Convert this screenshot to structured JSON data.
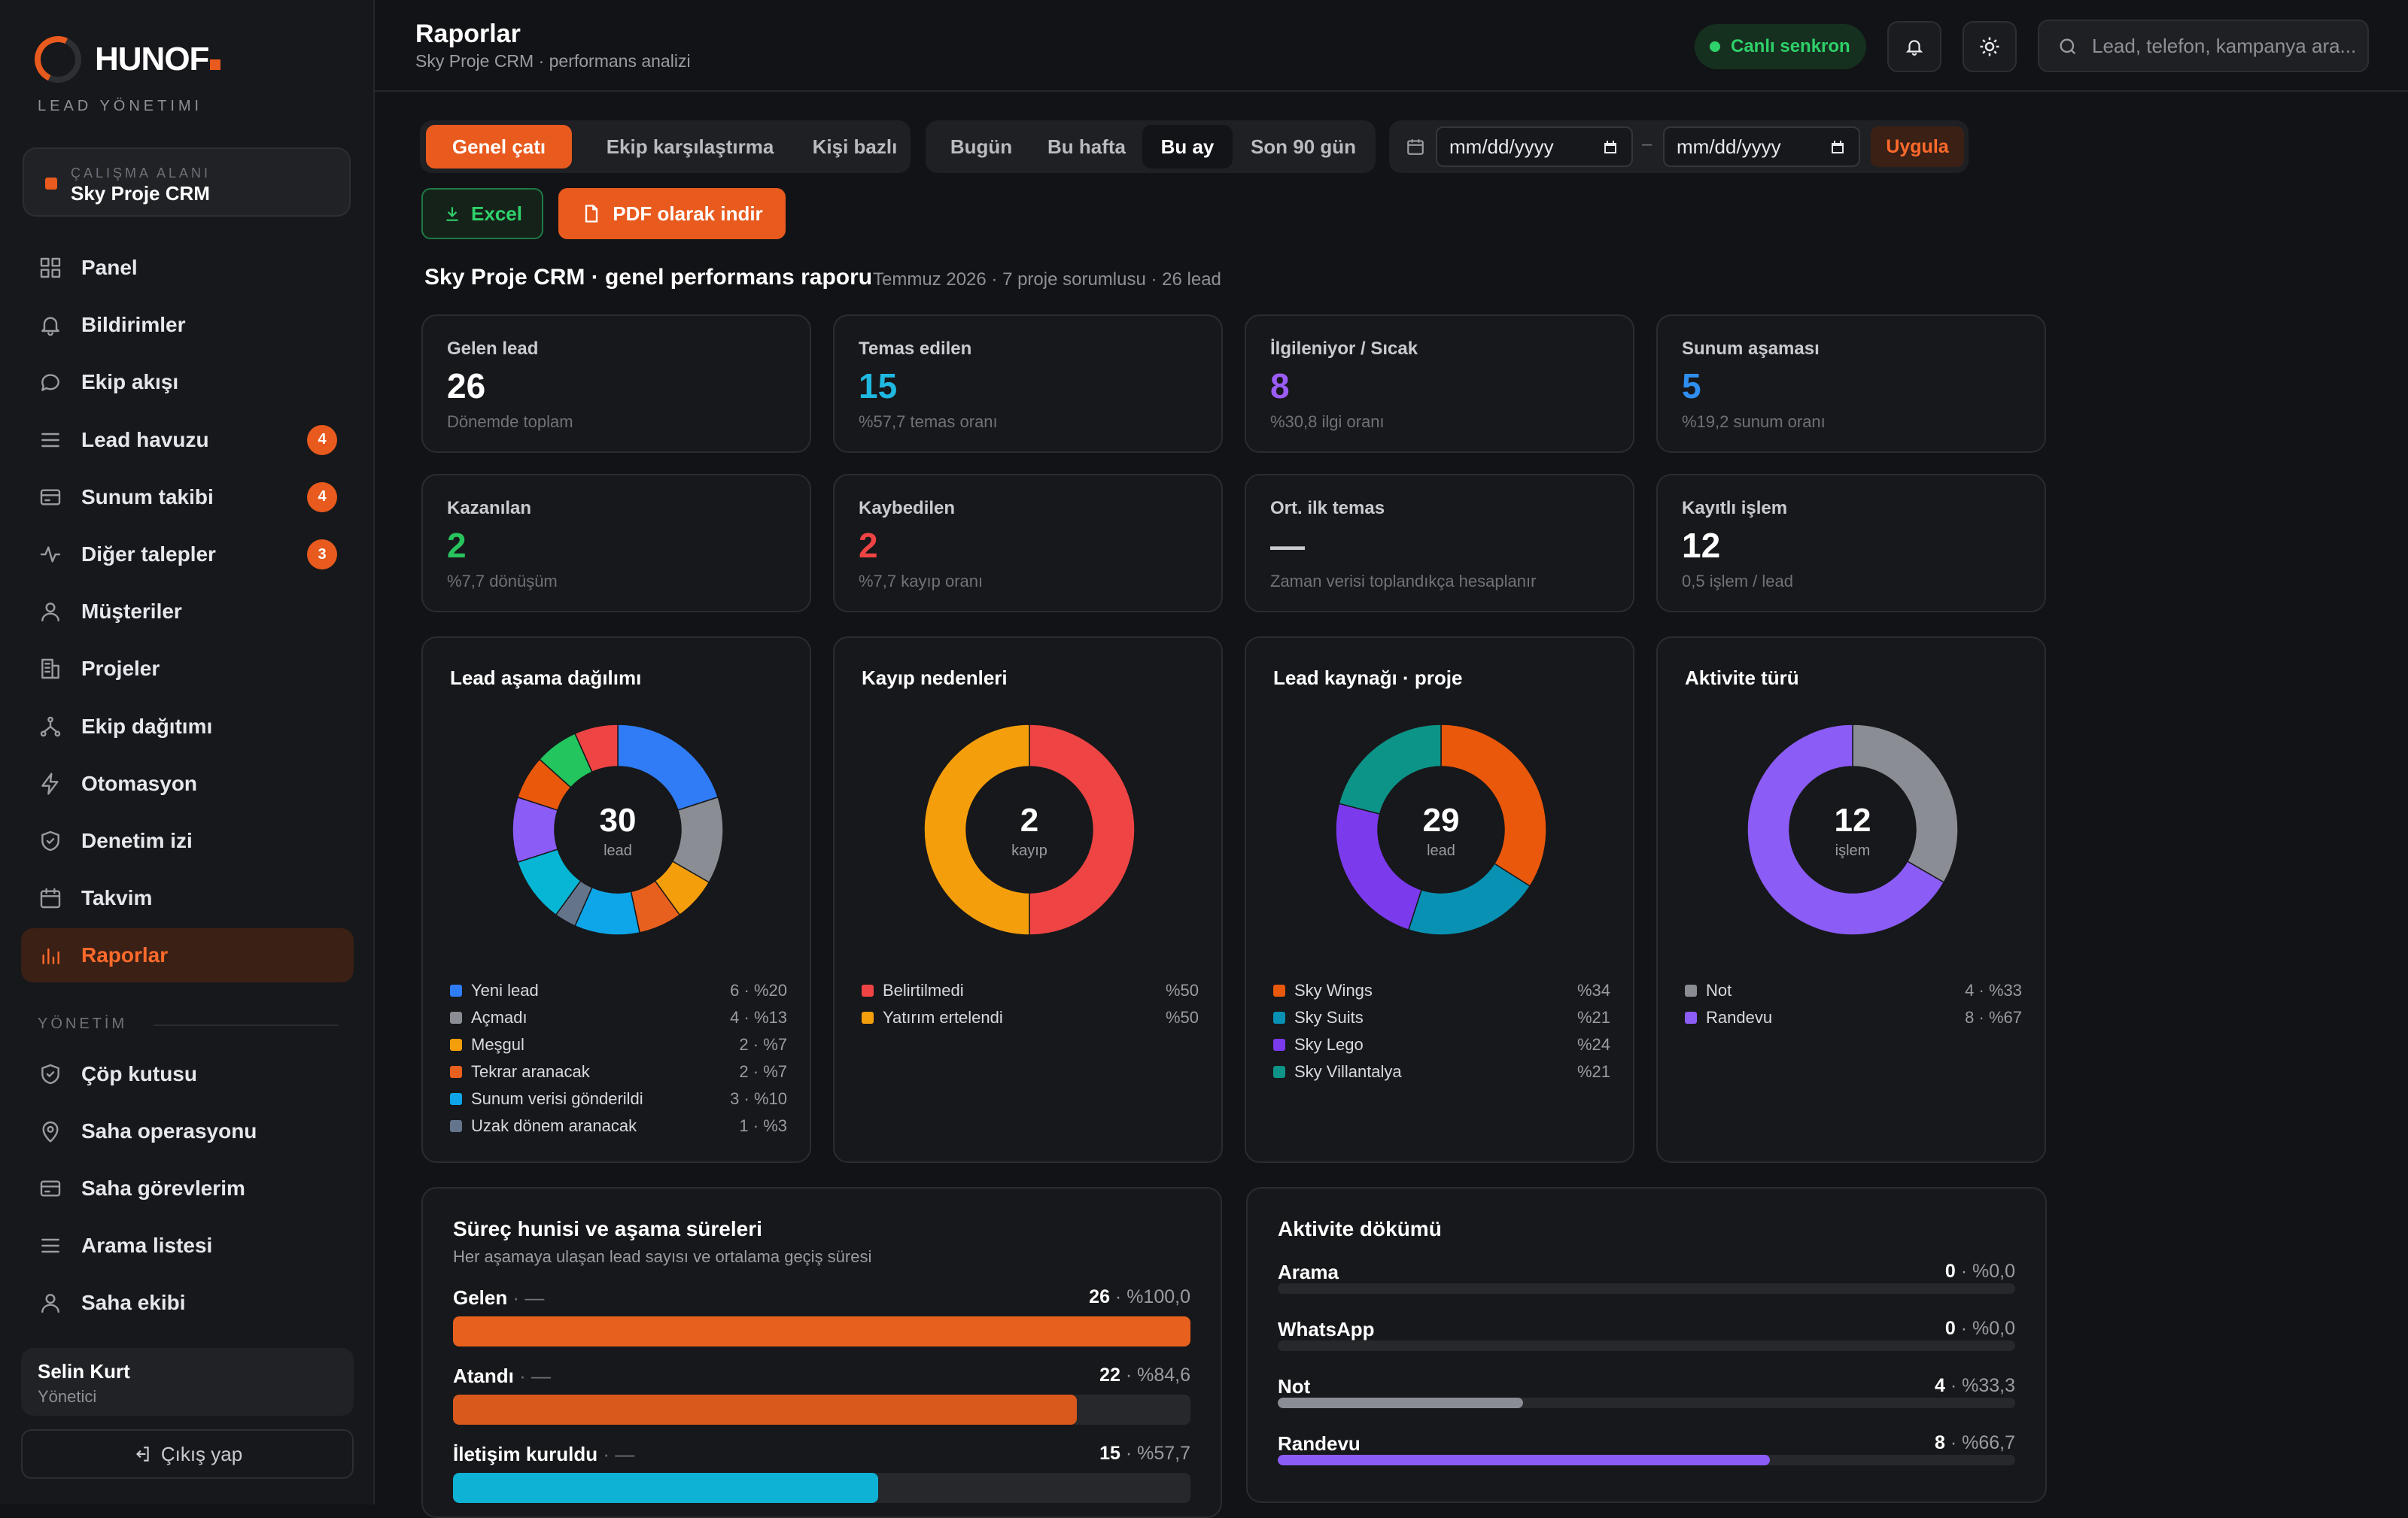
{
  "brand": {
    "name": "HUNOF",
    "subtitle": "LEAD YÖNETIMI"
  },
  "workspace": {
    "label": "ÇALIŞMA ALANI",
    "name": "Sky Proje CRM"
  },
  "nav": [
    {
      "label": "Panel",
      "icon": "grid-icon"
    },
    {
      "label": "Bildirimler",
      "icon": "bell-icon"
    },
    {
      "label": "Ekip akışı",
      "icon": "chat-icon"
    },
    {
      "label": "Lead havuzu",
      "icon": "list-icon",
      "badge": "4"
    },
    {
      "label": "Sunum takibi",
      "icon": "card-icon",
      "badge": "4"
    },
    {
      "label": "Diğer talepler",
      "icon": "activity-icon",
      "badge": "3"
    },
    {
      "label": "Müşteriler",
      "icon": "user-icon"
    },
    {
      "label": "Projeler",
      "icon": "building-icon"
    },
    {
      "label": "Ekip dağıtımı",
      "icon": "share-icon"
    },
    {
      "label": "Otomasyon",
      "icon": "bolt-icon"
    },
    {
      "label": "Denetim izi",
      "icon": "shield-icon"
    },
    {
      "label": "Takvim",
      "icon": "calendar-icon"
    },
    {
      "label": "Raporlar",
      "icon": "chart-icon",
      "active": true
    }
  ],
  "admin_section": "YÖNETİM",
  "admin_nav": [
    {
      "label": "Çöp kutusu",
      "icon": "shield-icon"
    },
    {
      "label": "Saha operasyonu",
      "icon": "pin-icon"
    },
    {
      "label": "Saha görevlerim",
      "icon": "card-icon"
    },
    {
      "label": "Arama listesi",
      "icon": "list-icon"
    },
    {
      "label": "Saha ekibi",
      "icon": "user-icon"
    }
  ],
  "user": {
    "name": "Selin Kurt",
    "role": "Yönetici",
    "logout": "Çıkış yap"
  },
  "header": {
    "title": "Raporlar",
    "subtitle": "Sky Proje CRM · performans analizi",
    "sync": "Canlı senkron",
    "search_placeholder": "Lead, telefon, kampanya ara..."
  },
  "view_tabs": [
    "Genel çatı",
    "Ekip karşılaştırma",
    "Kişi bazlı"
  ],
  "period_tabs": [
    "Bugün",
    "Bu hafta",
    "Bu ay",
    "Son 90 gün"
  ],
  "date_range": {
    "from": "mm/dd/yyyy",
    "to": "mm/dd/yyyy",
    "separator": "–",
    "apply": "Uygula"
  },
  "export": {
    "excel": "Excel",
    "pdf": "PDF olarak indir"
  },
  "report": {
    "title": "Sky Proje CRM · genel performans raporu",
    "meta": "Temmuz 2026 · 7 proje sorumlusu · 26 lead"
  },
  "kpis": [
    {
      "label": "Gelen lead",
      "value": "26",
      "note": "Dönemde toplam",
      "color": "#ffffff"
    },
    {
      "label": "Temas edilen",
      "value": "15",
      "note": "%57,7 temas oranı",
      "color": "#1fb8e0"
    },
    {
      "label": "İlgileniyor / Sıcak",
      "value": "8",
      "note": "%30,8 ilgi oranı",
      "color": "#9b5cf6"
    },
    {
      "label": "Sunum aşaması",
      "value": "5",
      "note": "%19,2 sunum oranı",
      "color": "#2f8ff0"
    },
    {
      "label": "Kazanılan",
      "value": "2",
      "note": "%7,7 dönüşüm",
      "color": "#28c45e"
    },
    {
      "label": "Kaybedilen",
      "value": "2",
      "note": "%7,7 kayıp oranı",
      "color": "#ef4444"
    },
    {
      "label": "Ort. ilk temas",
      "value": "—",
      "note": "Zaman verisi toplandıkça hesaplanır",
      "color": "#c9cbd0"
    },
    {
      "label": "Kayıtlı işlem",
      "value": "12",
      "note": "0,5 işlem / lead",
      "color": "#ffffff"
    }
  ],
  "chart_data": [
    {
      "type": "pie",
      "title": "Lead aşama dağılımı",
      "center": {
        "value": "30",
        "label": "lead"
      },
      "slices": [
        {
          "name": "Yeni lead",
          "value": 6,
          "display": "6 · %20",
          "color": "#2f7cf6"
        },
        {
          "name": "Açmadı",
          "value": 4,
          "display": "4 · %13",
          "color": "#8a8d93"
        },
        {
          "name": "Meşgul",
          "value": 2,
          "display": "2 · %7",
          "color": "#f59e0b"
        },
        {
          "name": "Tekrar aranacak",
          "value": 2,
          "display": "2 · %7",
          "color": "#e8601e"
        },
        {
          "name": "Sunum verisi gönderildi",
          "value": 3,
          "display": "3 · %10",
          "color": "#0ea5e9"
        },
        {
          "name": "Uzak dönem aranacak",
          "value": 1,
          "display": "1 · %3",
          "color": "#64748b"
        },
        {
          "name": "",
          "value": 3,
          "display": "",
          "color": "#06b6d4"
        },
        {
          "name": "",
          "value": 3,
          "display": "",
          "color": "#8b5cf6"
        },
        {
          "name": "",
          "value": 2,
          "display": "",
          "color": "#ea580c"
        },
        {
          "name": "",
          "value": 2,
          "display": "",
          "color": "#22c55e"
        },
        {
          "name": "",
          "value": 2,
          "display": "",
          "color": "#ef4444"
        }
      ]
    },
    {
      "type": "pie",
      "title": "Kayıp nedenleri",
      "center": {
        "value": "2",
        "label": "kayıp"
      },
      "slices": [
        {
          "name": "Belirtilmedi",
          "value": 50,
          "display": "%50",
          "color": "#ef4444"
        },
        {
          "name": "Yatırım ertelendi",
          "value": 50,
          "display": "%50",
          "color": "#f59e0b"
        }
      ]
    },
    {
      "type": "pie",
      "title": "Lead kaynağı · proje",
      "center": {
        "value": "29",
        "label": "lead"
      },
      "slices": [
        {
          "name": "Sky Wings",
          "value": 34,
          "display": "%34",
          "color": "#ea580c"
        },
        {
          "name": "Sky Suits",
          "value": 21,
          "display": "%21",
          "color": "#0891b2"
        },
        {
          "name": "Sky Lego",
          "value": 24,
          "display": "%24",
          "color": "#7c3aed"
        },
        {
          "name": "Sky Villantalya",
          "value": 21,
          "display": "%21",
          "color": "#0d9488"
        }
      ]
    },
    {
      "type": "pie",
      "title": "Aktivite türü",
      "center": {
        "value": "12",
        "label": "işlem"
      },
      "slices": [
        {
          "name": "Not",
          "value": 4,
          "display": "4 · %33",
          "color": "#8a8d93"
        },
        {
          "name": "Randevu",
          "value": 8,
          "display": "8 · %67",
          "color": "#8b5cf6"
        }
      ]
    },
    {
      "type": "bar",
      "title": "Süreç hunisi ve aşama süreleri",
      "subtitle": "Her aşamaya ulaşan lead sayısı ve ortalama geçiş süresi",
      "rows": [
        {
          "name": "Gelen",
          "duration": "—",
          "count": "26",
          "pct": "%100,0",
          "value": 1.0,
          "color": "#e8601e"
        },
        {
          "name": "Atandı",
          "duration": "—",
          "count": "22",
          "pct": "%84,6",
          "value": 0.846,
          "color": "#d9581c"
        },
        {
          "name": "İletişim kuruldu",
          "duration": "—",
          "count": "15",
          "pct": "%57,7",
          "value": 0.577,
          "color": "#0eb2d4"
        }
      ]
    },
    {
      "type": "bar",
      "title": "Aktivite dökümü",
      "rows": [
        {
          "name": "Arama",
          "count": "0",
          "pct": "%0,0",
          "value": 0.0,
          "color": "#8a8d93"
        },
        {
          "name": "WhatsApp",
          "count": "0",
          "pct": "%0,0",
          "value": 0.0,
          "color": "#8a8d93"
        },
        {
          "name": "Not",
          "count": "4",
          "pct": "%33,3",
          "value": 0.333,
          "color": "#8a8d93"
        },
        {
          "name": "Randevu",
          "count": "8",
          "pct": "%66,7",
          "value": 0.667,
          "color": "#8b5cf6"
        }
      ]
    }
  ]
}
